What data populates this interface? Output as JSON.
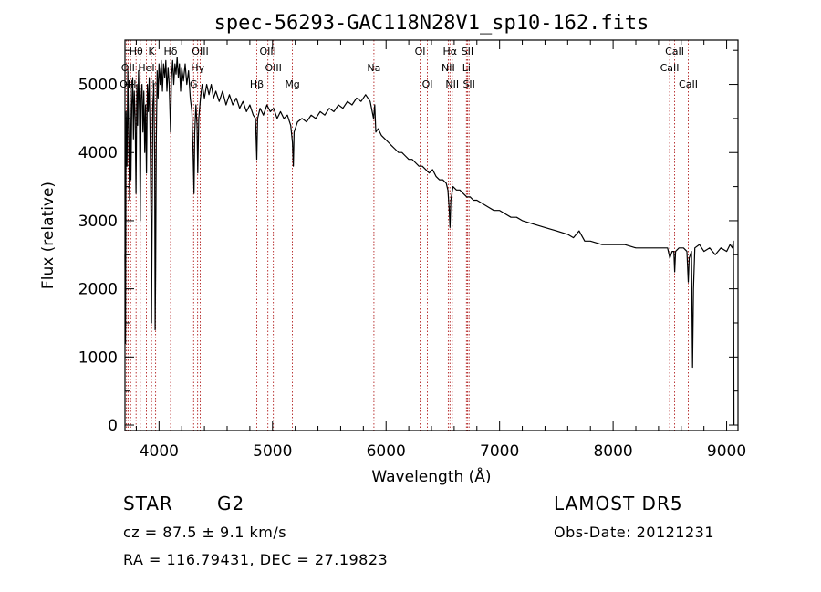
{
  "chart_data": {
    "type": "line",
    "title": "spec-56293-GAC118N28V1_sp10-162.fits",
    "xlabel": "Wavelength (Å)",
    "ylabel": "Flux (relative)",
    "xlim": [
      3700,
      9100
    ],
    "ylim": [
      -80,
      5650
    ],
    "x_ticks": [
      4000,
      5000,
      6000,
      7000,
      8000,
      9000
    ],
    "y_ticks": [
      0,
      1000,
      2000,
      3000,
      4000,
      5000
    ],
    "grid": false,
    "series": [
      {
        "points": [
          [
            3700,
            2500
          ],
          [
            3705,
            1200
          ],
          [
            3710,
            4600
          ],
          [
            3718,
            3800
          ],
          [
            3725,
            5200
          ],
          [
            3732,
            4300
          ],
          [
            3740,
            3300
          ],
          [
            3746,
            5000
          ],
          [
            3752,
            3600
          ],
          [
            3760,
            4700
          ],
          [
            3768,
            5100
          ],
          [
            3775,
            4200
          ],
          [
            3782,
            4900
          ],
          [
            3790,
            4500
          ],
          [
            3797,
            3400
          ],
          [
            3805,
            5000
          ],
          [
            3812,
            4400
          ],
          [
            3820,
            5200
          ],
          [
            3828,
            4600
          ],
          [
            3835,
            3000
          ],
          [
            3842,
            4800
          ],
          [
            3850,
            5000
          ],
          [
            3858,
            4300
          ],
          [
            3866,
            4900
          ],
          [
            3874,
            4000
          ],
          [
            3882,
            4700
          ],
          [
            3890,
            3700
          ],
          [
            3898,
            5000
          ],
          [
            3906,
            4600
          ],
          [
            3914,
            5100
          ],
          [
            3922,
            4200
          ],
          [
            3930,
            3000
          ],
          [
            3934,
            1500
          ],
          [
            3938,
            2600
          ],
          [
            3946,
            4700
          ],
          [
            3954,
            5000
          ],
          [
            3962,
            3900
          ],
          [
            3966,
            1400
          ],
          [
            3970,
            2200
          ],
          [
            3976,
            4100
          ],
          [
            3984,
            5200
          ],
          [
            3992,
            4800
          ],
          [
            4000,
            5300
          ],
          [
            4010,
            5000
          ],
          [
            4020,
            5350
          ],
          [
            4030,
            4900
          ],
          [
            4040,
            5300
          ],
          [
            4050,
            5100
          ],
          [
            4060,
            5350
          ],
          [
            4070,
            4900
          ],
          [
            4080,
            5250
          ],
          [
            4090,
            5000
          ],
          [
            4102,
            4300
          ],
          [
            4110,
            5100
          ],
          [
            4120,
            5350
          ],
          [
            4130,
            5000
          ],
          [
            4140,
            5300
          ],
          [
            4150,
            5150
          ],
          [
            4160,
            5400
          ],
          [
            4170,
            5100
          ],
          [
            4180,
            5300
          ],
          [
            4190,
            4900
          ],
          [
            4200,
            5250
          ],
          [
            4215,
            5050
          ],
          [
            4230,
            5300
          ],
          [
            4245,
            5000
          ],
          [
            4260,
            5200
          ],
          [
            4275,
            4800
          ],
          [
            4290,
            4600
          ],
          [
            4300,
            4000
          ],
          [
            4308,
            3400
          ],
          [
            4315,
            4300
          ],
          [
            4325,
            4700
          ],
          [
            4335,
            4400
          ],
          [
            4341,
            3700
          ],
          [
            4350,
            4500
          ],
          [
            4365,
            4800
          ],
          [
            4380,
            5000
          ],
          [
            4400,
            4800
          ],
          [
            4420,
            5000
          ],
          [
            4440,
            4850
          ],
          [
            4460,
            5000
          ],
          [
            4480,
            4800
          ],
          [
            4500,
            4900
          ],
          [
            4530,
            4750
          ],
          [
            4560,
            4900
          ],
          [
            4590,
            4700
          ],
          [
            4620,
            4850
          ],
          [
            4650,
            4700
          ],
          [
            4680,
            4800
          ],
          [
            4710,
            4650
          ],
          [
            4740,
            4750
          ],
          [
            4770,
            4600
          ],
          [
            4800,
            4700
          ],
          [
            4830,
            4550
          ],
          [
            4850,
            4500
          ],
          [
            4861,
            3900
          ],
          [
            4868,
            4500
          ],
          [
            4890,
            4650
          ],
          [
            4920,
            4550
          ],
          [
            4950,
            4700
          ],
          [
            4980,
            4600
          ],
          [
            5010,
            4650
          ],
          [
            5040,
            4500
          ],
          [
            5070,
            4600
          ],
          [
            5100,
            4500
          ],
          [
            5130,
            4550
          ],
          [
            5160,
            4400
          ],
          [
            5175,
            4150
          ],
          [
            5183,
            3800
          ],
          [
            5190,
            4300
          ],
          [
            5220,
            4450
          ],
          [
            5260,
            4500
          ],
          [
            5300,
            4450
          ],
          [
            5340,
            4550
          ],
          [
            5380,
            4500
          ],
          [
            5420,
            4600
          ],
          [
            5460,
            4550
          ],
          [
            5500,
            4650
          ],
          [
            5540,
            4600
          ],
          [
            5580,
            4700
          ],
          [
            5620,
            4650
          ],
          [
            5660,
            4750
          ],
          [
            5700,
            4700
          ],
          [
            5740,
            4800
          ],
          [
            5780,
            4750
          ],
          [
            5820,
            4850
          ],
          [
            5860,
            4750
          ],
          [
            5890,
            4500
          ],
          [
            5900,
            4700
          ],
          [
            5910,
            4300
          ],
          [
            5930,
            4350
          ],
          [
            5960,
            4250
          ],
          [
            5990,
            4200
          ],
          [
            6020,
            4150
          ],
          [
            6050,
            4100
          ],
          [
            6080,
            4050
          ],
          [
            6110,
            4000
          ],
          [
            6140,
            4000
          ],
          [
            6170,
            3950
          ],
          [
            6200,
            3900
          ],
          [
            6230,
            3900
          ],
          [
            6260,
            3850
          ],
          [
            6290,
            3800
          ],
          [
            6320,
            3800
          ],
          [
            6350,
            3750
          ],
          [
            6380,
            3700
          ],
          [
            6410,
            3750
          ],
          [
            6440,
            3650
          ],
          [
            6470,
            3600
          ],
          [
            6500,
            3600
          ],
          [
            6530,
            3550
          ],
          [
            6545,
            3450
          ],
          [
            6555,
            3200
          ],
          [
            6563,
            2900
          ],
          [
            6570,
            3300
          ],
          [
            6590,
            3500
          ],
          [
            6620,
            3450
          ],
          [
            6650,
            3450
          ],
          [
            6680,
            3400
          ],
          [
            6710,
            3350
          ],
          [
            6740,
            3350
          ],
          [
            6770,
            3300
          ],
          [
            6800,
            3300
          ],
          [
            6850,
            3250
          ],
          [
            6900,
            3200
          ],
          [
            6950,
            3150
          ],
          [
            7000,
            3150
          ],
          [
            7050,
            3100
          ],
          [
            7100,
            3050
          ],
          [
            7150,
            3050
          ],
          [
            7200,
            3000
          ],
          [
            7300,
            2950
          ],
          [
            7400,
            2900
          ],
          [
            7500,
            2850
          ],
          [
            7600,
            2800
          ],
          [
            7650,
            2750
          ],
          [
            7700,
            2850
          ],
          [
            7750,
            2700
          ],
          [
            7800,
            2700
          ],
          [
            7900,
            2650
          ],
          [
            8000,
            2650
          ],
          [
            8100,
            2650
          ],
          [
            8200,
            2600
          ],
          [
            8300,
            2600
          ],
          [
            8400,
            2600
          ],
          [
            8480,
            2600
          ],
          [
            8500,
            2450
          ],
          [
            8520,
            2550
          ],
          [
            8535,
            2550
          ],
          [
            8542,
            2250
          ],
          [
            8550,
            2550
          ],
          [
            8580,
            2600
          ],
          [
            8620,
            2600
          ],
          [
            8650,
            2550
          ],
          [
            8662,
            2100
          ],
          [
            8670,
            2450
          ],
          [
            8690,
            2550
          ],
          [
            8700,
            850
          ],
          [
            8708,
            2000
          ],
          [
            8720,
            2600
          ],
          [
            8760,
            2650
          ],
          [
            8800,
            2550
          ],
          [
            8850,
            2600
          ],
          [
            8900,
            2500
          ],
          [
            8950,
            2600
          ],
          [
            9000,
            2550
          ],
          [
            9030,
            2650
          ],
          [
            9050,
            2600
          ],
          [
            9060,
            2700
          ],
          [
            9065,
            0
          ]
        ]
      }
    ],
    "lines": {
      "color": "#b22222",
      "items": [
        {
          "label": "Hθ",
          "x": 3798,
          "row": 0
        },
        {
          "label": "K",
          "x": 3934,
          "row": 0
        },
        {
          "label": "Hδ",
          "x": 4102,
          "row": 0
        },
        {
          "label": "OIII",
          "x": 4363,
          "row": 0
        },
        {
          "label": "OIII",
          "x": 4959,
          "row": 0
        },
        {
          "label": "OI",
          "x": 6300,
          "row": 0
        },
        {
          "label": "Hα",
          "x": 6563,
          "row": 0
        },
        {
          "label": "SII",
          "x": 6717,
          "row": 0
        },
        {
          "label": "CaII",
          "x": 8542,
          "row": 0
        },
        {
          "label": "OII",
          "x": 3727,
          "row": 1
        },
        {
          "label": "HeI",
          "x": 3889,
          "row": 1
        },
        {
          "label": "Hγ",
          "x": 4340,
          "row": 1
        },
        {
          "label": "OIII",
          "x": 5007,
          "row": 1
        },
        {
          "label": "Na",
          "x": 5893,
          "row": 1
        },
        {
          "label": "NII",
          "x": 6548,
          "row": 1
        },
        {
          "label": "Li",
          "x": 6708,
          "row": 1
        },
        {
          "label": "CaII",
          "x": 8498,
          "row": 1
        },
        {
          "label": "OIII",
          "x": 3727,
          "row": 2
        },
        {
          "label": "H",
          "x": 3970,
          "row": 2
        },
        {
          "label": "G",
          "x": 4305,
          "row": 2
        },
        {
          "label": "Hβ",
          "x": 4861,
          "row": 2
        },
        {
          "label": "Mg",
          "x": 5175,
          "row": 2
        },
        {
          "label": "OI",
          "x": 6364,
          "row": 2
        },
        {
          "label": "NII",
          "x": 6583,
          "row": 2
        },
        {
          "label": "SII",
          "x": 6731,
          "row": 2
        },
        {
          "label": "CaII",
          "x": 8662,
          "row": 2
        },
        {
          "label": "",
          "x": 3835
        },
        {
          "label": "",
          "x": 3750
        },
        {
          "label": "",
          "x": 3711
        }
      ]
    }
  },
  "info": {
    "object_class": "STAR",
    "subclass": "G2",
    "survey": "LAMOST DR5",
    "cz": "cz = 87.5 ± 9.1 km/s",
    "obs_date": "Obs-Date: 20121231",
    "coords": "RA = 116.79431, DEC =  27.19823"
  }
}
